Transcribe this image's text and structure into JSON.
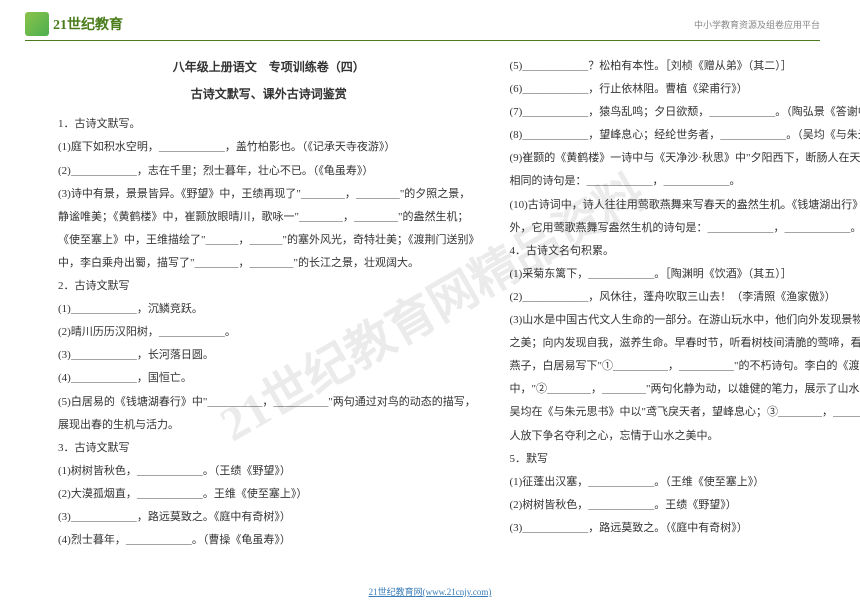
{
  "header": {
    "logo_text": "21世纪教育",
    "right_text": "中小学教育资源及组卷应用平台"
  },
  "watermark": "21世纪教育网精品资料",
  "title": "八年级上册语文　专项训练卷（四）",
  "subtitle": "古诗文默写、课外古诗词鉴赏",
  "left_lines": [
    "1．古诗文默写。",
    "(1)庭下如积水空明，＿＿＿＿＿＿，盖竹柏影也。（《记承天寺夜游》）",
    "(2)＿＿＿＿＿＿，志在千里；烈士暮年，壮心不已。（《龟虽寿》）",
    "(3)诗中有景，景景皆异。《野望》中，王绩再现了\"＿＿＿＿，＿＿＿＿\"的夕照之景，",
    "静谧唯美；《黄鹤楼》中，崔颢放眼晴川，歌咏一\"＿＿＿＿，＿＿＿＿\"的盎然生机；",
    "《使至塞上》中，王维描绘了\"＿＿＿，＿＿＿\"的塞外风光，奇特壮美；《渡荆门送别》",
    "中，李白乘舟出蜀，描写了\"＿＿＿＿，＿＿＿＿\"的长江之景，壮观阔大。",
    "2．古诗文默写",
    "(1)＿＿＿＿＿＿，沉鳞竞跃。",
    "(2)晴川历历汉阳树，＿＿＿＿＿＿。",
    "(3)＿＿＿＿＿＿，长河落日圆。",
    "(4)＿＿＿＿＿＿，国恒亡。",
    "(5)白居易的《钱塘湖春行》中\"＿＿＿＿＿，＿＿＿＿＿\"两句通过对鸟的动态的描写，",
    "展现出春的生机与活力。",
    "3．古诗文默写",
    "(1)树树皆秋色，＿＿＿＿＿＿。（王绩《野望》）",
    "(2)大漠孤烟直，＿＿＿＿＿＿。王维《使至塞上》）",
    "(3)＿＿＿＿＿＿，路远莫致之。《庭中有奇树》）",
    "(4)烈士暮年，＿＿＿＿＿＿。（曹操《龟虽寿》）"
  ],
  "right_lines": [
    "(5)＿＿＿＿＿＿？松柏有本性。［刘桢《赠从弟》（其二）］",
    "(6)＿＿＿＿＿＿，行止依林阻。曹植《梁甫行》）",
    "(7)＿＿＿＿＿＿，猿鸟乱鸣；夕日欲颓，＿＿＿＿＿＿。（陶弘景《答谢中书书》）",
    "(8)＿＿＿＿＿＿，望峰息心；经纶世务者，＿＿＿＿＿＿。（吴均《与朱元思书》）",
    "(9)崔颢的《黄鹤楼》一诗中与《天净沙·秋思》中\"夕阳西下，断肠人在天涯\"意境",
    "相同的诗句是：＿＿＿＿＿＿，＿＿＿＿＿＿。",
    "(10)古诗词中，诗人往往用莺歌燕舞来写春天的盎然生机。《钱塘湖出行》一诗也不例",
    "外，它用莺歌燕舞写盎然生机的诗句是：＿＿＿＿＿＿，＿＿＿＿＿＿。",
    "4．古诗文名句积累。",
    "(1)采菊东篱下，＿＿＿＿＿＿。［陶渊明《饮酒》（其五）］",
    "(2)＿＿＿＿＿＿，风休往，蓬舟吹取三山去！（李清照《渔家傲》）",
    "(3)山水是中国古代文人生命的一部分。在游山玩水中，他们向外发现景物之趣，生活",
    "之美；向内发现自我，滋养生命。早春时节，听看树枝间清脆的莺啼，看着衔泥筑巢的",
    "燕子，白居易写下\"①＿＿＿＿＿，＿＿＿＿＿\"的不朽诗句。李白的《渡荆门送别》一诗",
    "中，\"②＿＿＿＿，＿＿＿＿\"两句化静为动，以雄健的笔力，展示了山水的壮阔之美。",
    "吴均在《与朱元思书》中以\"鸢飞戾天者，望峰息心；③＿＿＿＿，＿＿＿＿\"来劝友",
    "人放下争名夺利之心，忘情于山水之美中。",
    "5．默写",
    "(1)征蓬出汉塞，＿＿＿＿＿＿。（王维《使至塞上》）",
    "(2)树树皆秋色，＿＿＿＿＿＿。王绩《野望》）",
    "(3)＿＿＿＿＿＿，路远莫致之。（《庭中有奇树》）"
  ],
  "footer": {
    "text": "21世纪教育网(www.21cnjy.com)"
  }
}
